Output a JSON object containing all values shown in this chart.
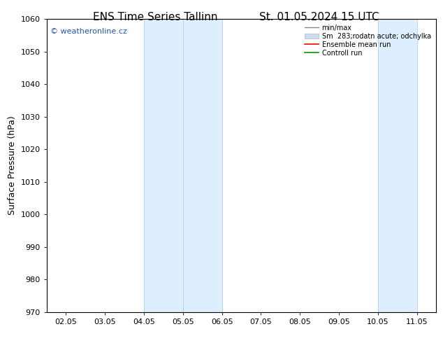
{
  "title_left": "ENS Time Series Tallinn",
  "title_right": "St. 01.05.2024 15 UTC",
  "ylabel": "Surface Pressure (hPa)",
  "ylim": [
    970,
    1060
  ],
  "yticks": [
    970,
    980,
    990,
    1000,
    1010,
    1020,
    1030,
    1040,
    1050,
    1060
  ],
  "xlabels": [
    "02.05",
    "03.05",
    "04.05",
    "05.05",
    "06.05",
    "07.05",
    "08.05",
    "09.05",
    "10.05",
    "11.05"
  ],
  "x_values": [
    0,
    1,
    2,
    3,
    4,
    5,
    6,
    7,
    8,
    9
  ],
  "shaded_bands": [
    {
      "xmin": 2.0,
      "xmax": 3.0
    },
    {
      "xmin": 3.0,
      "xmax": 4.0
    },
    {
      "xmin": 8.0,
      "xmax": 9.0
    }
  ],
  "band_color": "#ddeeff",
  "band_edge_color": "#b8d4e8",
  "watermark": "© weatheronline.cz",
  "watermark_color": "#2255aa",
  "legend_labels": [
    "min/max",
    "Sm  283;rodatn acute; odchylka",
    "Ensemble mean run",
    "Controll run"
  ],
  "legend_colors_line": [
    "#999999",
    "#ccddee",
    "#ff0000",
    "#009900"
  ],
  "bg_color": "#ffffff",
  "axes_color": "#000000",
  "title_fontsize": 11,
  "tick_fontsize": 8,
  "ylabel_fontsize": 9,
  "plot_bg": "#f0f0f0"
}
